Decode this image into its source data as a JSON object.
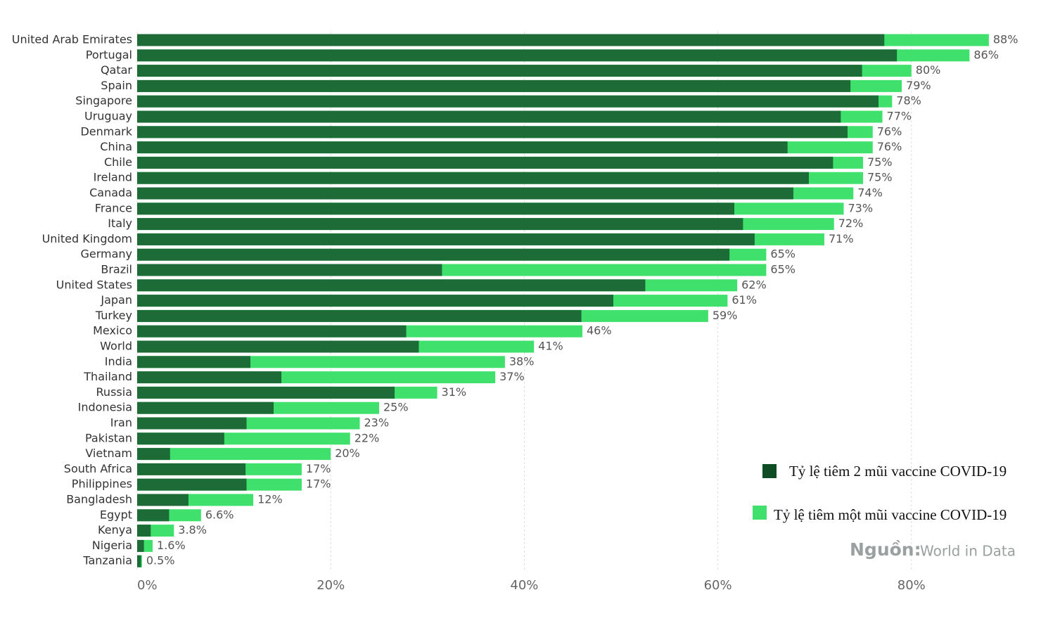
{
  "chart_data": {
    "type": "bar",
    "orientation": "horizontal",
    "categories": [
      "United Arab Emirates",
      "Portugal",
      "Qatar",
      "Spain",
      "Singapore",
      "Uruguay",
      "Denmark",
      "China",
      "Chile",
      "Ireland",
      "Canada",
      "France",
      "Italy",
      "United Kingdom",
      "Germany",
      "Brazil",
      "United States",
      "Japan",
      "Turkey",
      "Mexico",
      "World",
      "India",
      "Thailand",
      "Russia",
      "Indonesia",
      "Iran",
      "Pakistan",
      "Vietnam",
      "South Africa",
      "Philippines",
      "Bangladesh",
      "Egypt",
      "Kenya",
      "Nigeria",
      "Tanzania"
    ],
    "series": [
      {
        "name": "Tỷ lệ tiêm 2 mũi vaccine COVID-19",
        "color": "#1d6b37",
        "values": [
          77.2,
          78.5,
          74.9,
          73.7,
          76.6,
          72.7,
          73.4,
          67.2,
          71.9,
          69.4,
          67.8,
          61.7,
          62.6,
          63.8,
          61.2,
          31.5,
          52.5,
          49.2,
          45.9,
          27.8,
          29.1,
          11.7,
          14.9,
          26.6,
          14.1,
          11.3,
          9.0,
          3.4,
          11.2,
          11.3,
          5.3,
          3.3,
          1.4,
          0.7,
          0.4
        ]
      },
      {
        "name": "Tỷ lệ tiêm một mũi vaccine COVID-19",
        "color": "#3fe06b",
        "values": [
          88,
          86,
          80,
          79,
          78,
          77,
          76,
          76,
          75,
          75,
          74,
          73,
          72,
          71,
          65,
          65,
          62,
          61,
          59,
          46,
          41,
          38,
          37,
          31,
          25,
          23,
          22,
          20,
          17,
          17,
          12,
          6.6,
          3.8,
          1.6,
          0.5
        ],
        "value_labels": [
          "88%",
          "86%",
          "80%",
          "79%",
          "78%",
          "77%",
          "76%",
          "76%",
          "75%",
          "75%",
          "74%",
          "73%",
          "72%",
          "71%",
          "65%",
          "65%",
          "62%",
          "61%",
          "59%",
          "46%",
          "41%",
          "38%",
          "37%",
          "31%",
          "25%",
          "23%",
          "22%",
          "20%",
          "17%",
          "17%",
          "12%",
          "6.6%",
          "3.8%",
          "1.6%",
          "0.5%"
        ]
      }
    ],
    "xlim": [
      0,
      90
    ],
    "xticks": [
      {
        "value": 0,
        "label": "0%"
      },
      {
        "value": 20,
        "label": "20%"
      },
      {
        "value": 40,
        "label": "40%"
      },
      {
        "value": 60,
        "label": "60%"
      },
      {
        "value": 80,
        "label": "80%"
      }
    ],
    "grid": true,
    "legend": "lower right",
    "source_label": "Nguồn:",
    "source": "World in Data"
  }
}
